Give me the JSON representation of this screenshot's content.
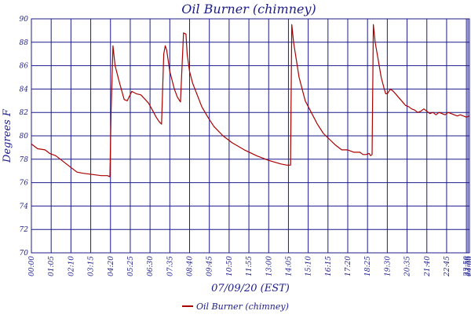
{
  "chart_data": {
    "type": "line",
    "title": "Oil Burner (chimney)",
    "xlabel": "07/09/20 (EST)",
    "ylabel": "Degrees F",
    "ylim": [
      70,
      90
    ],
    "yticks": [
      70,
      72,
      74,
      76,
      78,
      80,
      82,
      84,
      86,
      88,
      90
    ],
    "ytick_labels": [
      "70",
      "72",
      "74",
      "76",
      "78",
      "80",
      "82",
      "84",
      "86",
      "88",
      "90"
    ],
    "xlim": [
      0,
      1440
    ],
    "xticks": [
      0,
      65,
      130,
      195,
      260,
      325,
      390,
      455,
      520,
      585,
      650,
      715,
      780,
      845,
      910,
      975,
      1040,
      1105,
      1170,
      1235,
      1300,
      1365,
      1430,
      1435,
      1440
    ],
    "xtick_labels": [
      "00:00",
      "01:05",
      "02:10",
      "03:15",
      "04:20",
      "05:25",
      "06:30",
      "07:35",
      "08:40",
      "09:45",
      "10:50",
      "11:55",
      "13:00",
      "14:05",
      "15:10",
      "16:15",
      "17:20",
      "18:25",
      "19:30",
      "20:35",
      "21:40",
      "22:45",
      "23:50",
      "23:55",
      "24:00"
    ],
    "grid": true,
    "legend_position": "bottom-center",
    "series": [
      {
        "name": "Oil Burner (chimney)",
        "color": "#aa0000",
        "x": [
          0,
          10,
          20,
          45,
          60,
          80,
          100,
          120,
          150,
          170,
          200,
          230,
          250,
          258,
          262,
          268,
          275,
          290,
          305,
          315,
          330,
          345,
          360,
          385,
          400,
          410,
          420,
          428,
          435,
          440,
          445,
          455,
          470,
          480,
          490,
          500,
          508,
          512,
          520,
          530,
          545,
          560,
          580,
          600,
          630,
          660,
          700,
          740,
          780,
          820,
          840,
          852,
          856,
          862,
          868,
          880,
          900,
          920,
          940,
          960,
          980,
          1000,
          1020,
          1040,
          1060,
          1080,
          1090,
          1100,
          1110,
          1115,
          1120,
          1124,
          1130,
          1140,
          1150,
          1160,
          1165,
          1170,
          1180,
          1190,
          1200,
          1210,
          1220,
          1230,
          1240,
          1250,
          1260,
          1270,
          1280,
          1290,
          1300,
          1310,
          1320,
          1330,
          1340,
          1350,
          1360,
          1370,
          1380,
          1390,
          1400,
          1410,
          1420,
          1430,
          1440
        ],
        "y": [
          79.3,
          79.1,
          78.9,
          78.8,
          78.5,
          78.3,
          77.9,
          77.5,
          76.9,
          76.8,
          76.7,
          76.6,
          76.6,
          76.5,
          82.0,
          87.7,
          86.0,
          84.5,
          83.1,
          83.0,
          83.8,
          83.6,
          83.5,
          82.8,
          82.1,
          81.6,
          81.2,
          81.0,
          87.0,
          87.7,
          87.3,
          85.5,
          84.0,
          83.3,
          82.9,
          88.8,
          88.7,
          87.0,
          85.5,
          84.5,
          83.5,
          82.5,
          81.6,
          80.8,
          80.0,
          79.4,
          78.8,
          78.3,
          77.9,
          77.6,
          77.5,
          77.5,
          89.5,
          88.0,
          87.0,
          85.0,
          83.0,
          82.0,
          81.0,
          80.2,
          79.7,
          79.2,
          78.8,
          78.8,
          78.6,
          78.6,
          78.4,
          78.4,
          78.5,
          78.3,
          78.4,
          89.5,
          88.0,
          86.5,
          85.0,
          84.0,
          83.6,
          83.6,
          84.0,
          83.8,
          83.5,
          83.2,
          82.9,
          82.6,
          82.5,
          82.3,
          82.2,
          82.0,
          82.1,
          82.3,
          82.1,
          81.9,
          82.0,
          81.8,
          82.0,
          81.9,
          81.8,
          82.0,
          81.9,
          81.8,
          81.7,
          81.8,
          81.7,
          81.6,
          81.7
        ]
      }
    ]
  }
}
